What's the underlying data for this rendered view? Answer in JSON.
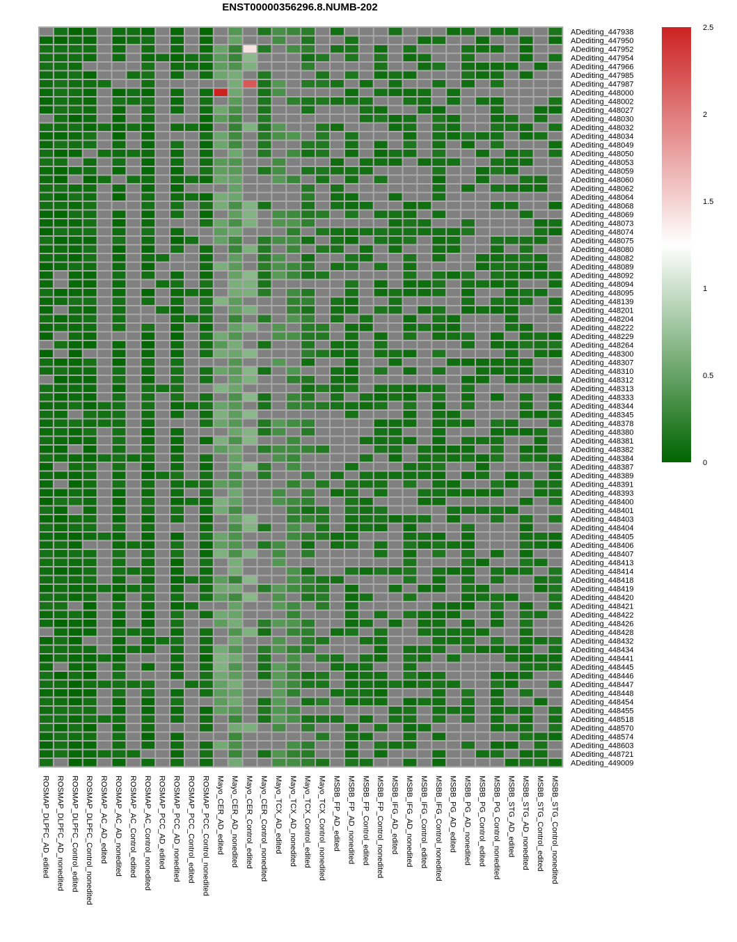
{
  "chart_data": {
    "type": "heatmap",
    "title": "ENST00000356296.8.NUMB-202",
    "columns": [
      "ROSMAP_DLPFC_AD_edited",
      "ROSMAP_DLPFC_AD_nonedited",
      "ROSMAP_DLPFC_Control_edited",
      "ROSMAP_DLPFC_Control_nonedited",
      "ROSMAP_AC_AD_edited",
      "ROSMAP_AC_AD_nonedited",
      "ROSMAP_AC_Control_edited",
      "ROSMAP_AC_Control_nonedited",
      "ROSMAP_PCC_AD_edited",
      "ROSMAP_PCC_AD_nonedited",
      "ROSMAP_PCC_Control_edited",
      "ROSMAP_PCC_Control_nonedited",
      "Mayo_CER_AD_edited",
      "Mayo_CER_AD_nonedited",
      "Mayo_CER_Control_edited",
      "Mayo_CER_Control_nonedited",
      "Mayo_TCX_AD_edited",
      "Mayo_TCX_AD_nonedited",
      "Mayo_TCX_Control_edited",
      "Mayo_TCX_Control_nonedited",
      "MSBB_FP_AD_edited",
      "MSBB_FP_AD_nonedited",
      "MSBB_FP_Control_edited",
      "MSBB_FP_Control_nonedited",
      "MSBB_IFG_AD_edited",
      "MSBB_IFG_AD_nonedited",
      "MSBB_IFG_Control_edited",
      "MSBB_IFG_Control_nonedited",
      "MSBB_PG_AD_edited",
      "MSBB_PG_AD_nonedited",
      "MSBB_PG_Control_edited",
      "MSBB_PG_Control_nonedited",
      "MSBB_STG_AD_edited",
      "MSBB_STG_AD_nonedited",
      "MSBB_STG_Control_edited",
      "MSBB_STG_Control_nonedited"
    ],
    "rows": [
      "ADediting_447938",
      "ADediting_447950",
      "ADediting_447952",
      "ADediting_447954",
      "ADediting_447966",
      "ADediting_447985",
      "ADediting_447987",
      "ADediting_448000",
      "ADediting_448002",
      "ADediting_448027",
      "ADediting_448030",
      "ADediting_448032",
      "ADediting_448034",
      "ADediting_448049",
      "ADediting_448050",
      "ADediting_448053",
      "ADediting_448059",
      "ADediting_448060",
      "ADediting_448062",
      "ADediting_448064",
      "ADediting_448068",
      "ADediting_448069",
      "ADediting_448073",
      "ADediting_448074",
      "ADediting_448075",
      "ADediting_448080",
      "ADediting_448082",
      "ADediting_448089",
      "ADediting_448092",
      "ADediting_448094",
      "ADediting_448095",
      "ADediting_448139",
      "ADediting_448201",
      "ADediting_448204",
      "ADediting_448222",
      "ADediting_448229",
      "ADediting_448264",
      "ADediting_448300",
      "ADediting_448307",
      "ADediting_448310",
      "ADediting_448312",
      "ADediting_448313",
      "ADediting_448333",
      "ADediting_448344",
      "ADediting_448345",
      "ADediting_448378",
      "ADediting_448380",
      "ADediting_448381",
      "ADediting_448382",
      "ADediting_448384",
      "ADediting_448387",
      "ADediting_448389",
      "ADediting_448391",
      "ADediting_448393",
      "ADediting_448400",
      "ADediting_448401",
      "ADediting_448403",
      "ADediting_448404",
      "ADediting_448405",
      "ADediting_448406",
      "ADediting_448407",
      "ADediting_448413",
      "ADediting_448414",
      "ADediting_448418",
      "ADediting_448419",
      "ADediting_448420",
      "ADediting_448421",
      "ADediting_448422",
      "ADediting_448426",
      "ADediting_448428",
      "ADediting_448432",
      "ADediting_448434",
      "ADediting_448441",
      "ADediting_448445",
      "ADediting_448446",
      "ADediting_448447",
      "ADediting_448448",
      "ADediting_448454",
      "ADediting_448455",
      "ADediting_448518",
      "ADediting_448570",
      "ADediting_448574",
      "ADediting_448603",
      "ADediting_448721",
      "ADediting_449009"
    ],
    "color_scale": {
      "min": 0,
      "max": 2.5,
      "ticks": [
        0,
        0.5,
        1,
        1.5,
        2,
        2.5
      ],
      "colors": [
        "#006400",
        "#FFFFFF",
        "#CC2222"
      ],
      "na_color": "#808080",
      "border_color": "#A9A9A9"
    },
    "highlights": [
      {
        "row": "ADediting_448000",
        "column": "Mayo_CER_AD_edited",
        "value": 2.5
      },
      {
        "row": "ADediting_447987",
        "column": "Mayo_CER_Control_edited",
        "value": 2.2
      },
      {
        "row": "ADediting_447952",
        "column": "Mayo_CER_Control_edited",
        "value": 1.4
      }
    ]
  }
}
